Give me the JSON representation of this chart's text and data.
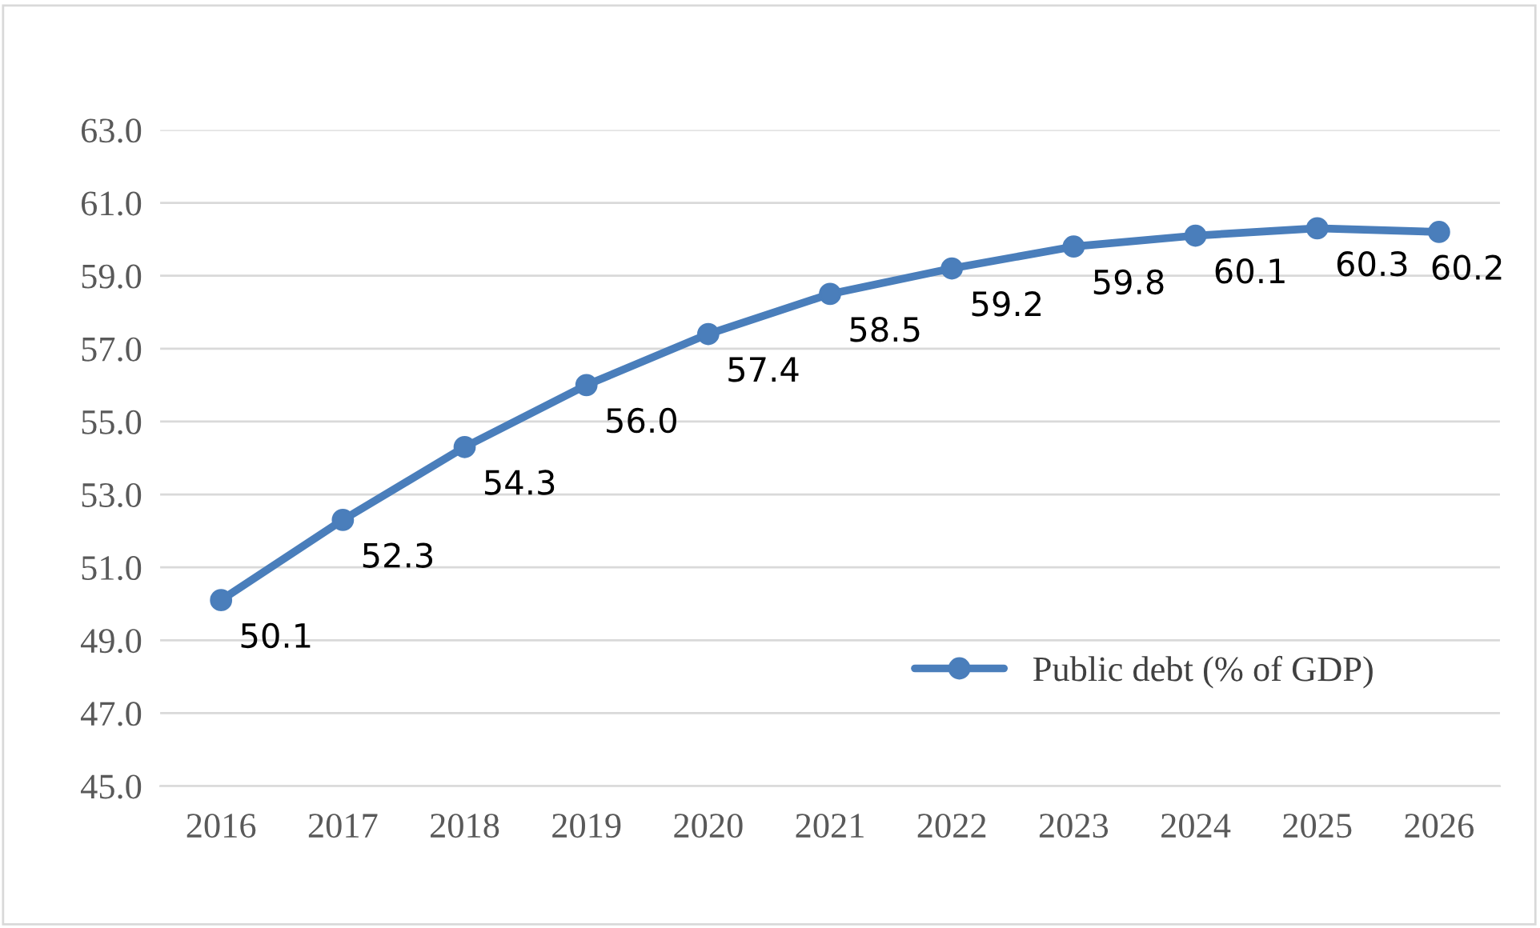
{
  "chart_data": {
    "type": "line",
    "categories": [
      "2016",
      "2017",
      "2018",
      "2019",
      "2020",
      "2021",
      "2022",
      "2023",
      "2024",
      "2025",
      "2026"
    ],
    "series": [
      {
        "name": "Public debt (% of GDP)",
        "color": "#4a7ebb",
        "values": [
          50.1,
          52.3,
          54.3,
          56.0,
          57.4,
          58.5,
          59.2,
          59.8,
          60.1,
          60.3,
          60.2
        ],
        "value_labels": [
          "50.1",
          "52.3",
          "54.3",
          "56.0",
          "57.4",
          "58.5",
          "59.2",
          "59.8",
          "60.1",
          "60.3",
          "60.2"
        ]
      }
    ],
    "ylim": [
      45,
      63
    ],
    "yticks": [
      {
        "value": 45,
        "label": "45.0"
      },
      {
        "value": 47,
        "label": "47.0"
      },
      {
        "value": 49,
        "label": "49.0"
      },
      {
        "value": 51,
        "label": "51.0"
      },
      {
        "value": 53,
        "label": "53.0"
      },
      {
        "value": 55,
        "label": "55.0"
      },
      {
        "value": 57,
        "label": "57.0"
      },
      {
        "value": 59,
        "label": "59.0"
      },
      {
        "value": 61,
        "label": "61.0"
      },
      {
        "value": 63,
        "label": "63.0"
      }
    ],
    "grid": "y",
    "legend": "bottom right",
    "marker": "circle",
    "line_style": "solid"
  }
}
